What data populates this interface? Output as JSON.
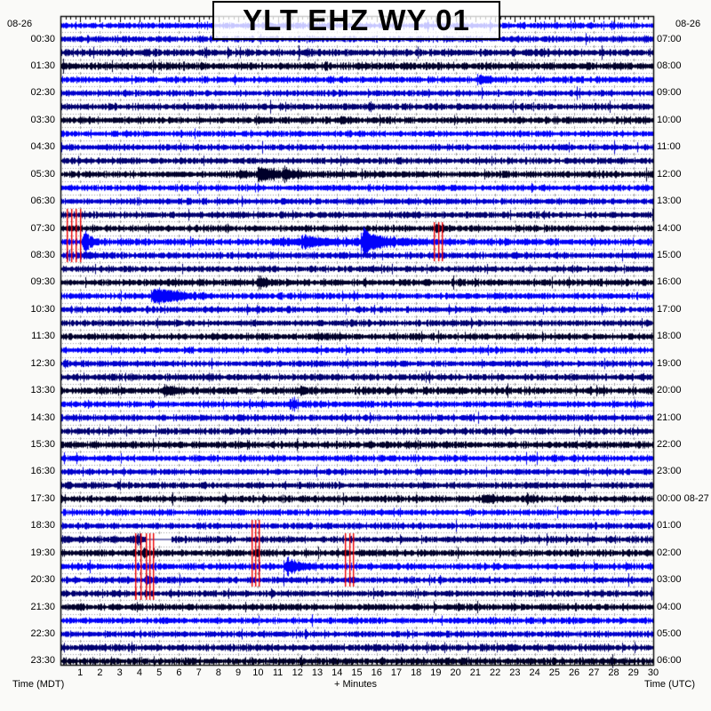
{
  "title": "YLT EHZ WY 01",
  "axes": {
    "left": {
      "caption": "Time (MDT)",
      "date": "08-26",
      "labels": [
        "00:30",
        "01:30",
        "02:30",
        "03:30",
        "04:30",
        "05:30",
        "06:30",
        "07:30",
        "08:30",
        "09:30",
        "10:30",
        "11:30",
        "12:30",
        "13:30",
        "14:30",
        "15:30",
        "16:30",
        "17:30",
        "18:30",
        "19:30",
        "20:30",
        "21:30",
        "22:30",
        "23:30"
      ]
    },
    "right": {
      "caption": "Time (UTC)",
      "date": "08-26",
      "labels": [
        "07:00",
        "08:00",
        "09:00",
        "10:00",
        "11:00",
        "12:00",
        "13:00",
        "14:00",
        "15:00",
        "16:00",
        "17:00",
        "18:00",
        "19:00",
        "20:00",
        "21:00",
        "22:00",
        "23:00",
        "00:00 08-27",
        "01:00",
        "02:00",
        "03:00",
        "04:00",
        "05:00",
        "06:00"
      ]
    },
    "bottom": {
      "caption": "+ Minutes",
      "labels": [
        "1",
        "2",
        "3",
        "4",
        "5",
        "6",
        "7",
        "8",
        "9",
        "10",
        "11",
        "12",
        "13",
        "14",
        "15",
        "16",
        "17",
        "18",
        "19",
        "20",
        "21",
        "22",
        "23",
        "24",
        "25",
        "26",
        "27",
        "28",
        "29",
        "30"
      ]
    }
  },
  "chart_data": {
    "type": "line",
    "subtype": "helicorder-seismogram",
    "title": "YLT EHZ WY 01",
    "station": "YLT",
    "channel": "EHZ",
    "network_region": "WY",
    "display": "01",
    "x_range_minutes": [
      0,
      30
    ],
    "minutes_per_line": 30,
    "local_date": "08-26",
    "utc_rollover_label": "00:00 08-27",
    "palette": {
      "b1": "#0202fa",
      "b2": "#0000cd",
      "d1": "#000070",
      "d2": "#00002a",
      "marker": "#ee0000",
      "grid": "#9a9a9a",
      "frame": "#000000",
      "plot_bg": "#ffffff"
    },
    "lines": [
      {
        "t": "00:00",
        "c": "b1",
        "n": 2.5
      },
      {
        "t": "00:30",
        "c": "b2",
        "n": 2.6
      },
      {
        "t": "01:00",
        "c": "d1",
        "n": 2.9
      },
      {
        "t": "01:30",
        "c": "d2",
        "n": 3.1
      },
      {
        "t": "02:00",
        "c": "b1",
        "n": 2.6,
        "ev": [
          [
            21.2,
            5,
            0.5
          ]
        ]
      },
      {
        "t": "02:30",
        "c": "b2",
        "n": 2.5
      },
      {
        "t": "03:00",
        "c": "d1",
        "n": 2.7
      },
      {
        "t": "03:30",
        "c": "d2",
        "n": 2.8,
        "ev": [
          [
            14.2,
            3,
            0.3
          ]
        ]
      },
      {
        "t": "04:00",
        "c": "b1",
        "n": 2.5
      },
      {
        "t": "04:30",
        "c": "b2",
        "n": 2.5
      },
      {
        "t": "05:00",
        "c": "d1",
        "n": 2.6
      },
      {
        "t": "05:30",
        "c": "d2",
        "n": 2.8,
        "ev": [
          [
            9.0,
            3,
            0.4
          ],
          [
            10.0,
            8,
            0.7
          ],
          [
            11.3,
            5,
            0.6
          ]
        ]
      },
      {
        "t": "06:00",
        "c": "b1",
        "n": 2.5
      },
      {
        "t": "06:30",
        "c": "b2",
        "n": 2.5
      },
      {
        "t": "07:00",
        "c": "d1",
        "n": 2.6
      },
      {
        "t": "07:30",
        "c": "d2",
        "n": 2.7,
        "ev": [
          [
            19.0,
            2.5,
            0.3
          ]
        ]
      },
      {
        "t": "08:00",
        "c": "b1",
        "n": 2.8,
        "ev": [
          [
            1.2,
            12,
            0.3
          ],
          [
            11.0,
            2,
            3.0
          ],
          [
            12.3,
            6,
            0.8
          ],
          [
            15.3,
            18,
            0.2
          ],
          [
            15.45,
            6,
            1.4
          ]
        ]
      },
      {
        "t": "08:30",
        "c": "b2",
        "n": 2.7,
        "ev": [
          [
            1.2,
            3,
            0.3
          ]
        ]
      },
      {
        "t": "09:00",
        "c": "d1",
        "n": 2.6
      },
      {
        "t": "09:30",
        "c": "d2",
        "n": 2.8,
        "ev": [
          [
            10.1,
            5,
            0.25
          ]
        ]
      },
      {
        "t": "10:00",
        "c": "b1",
        "n": 2.6,
        "ev": [
          [
            4.7,
            9,
            0.7
          ],
          [
            5.2,
            3,
            1.2
          ]
        ]
      },
      {
        "t": "10:30",
        "c": "b2",
        "n": 2.5
      },
      {
        "t": "11:00",
        "c": "d1",
        "n": 2.6
      },
      {
        "t": "11:30",
        "c": "d2",
        "n": 2.7,
        "ev": [
          [
            13.0,
            3,
            0.4
          ]
        ]
      },
      {
        "t": "12:00",
        "c": "b1",
        "n": 2.5
      },
      {
        "t": "12:30",
        "c": "b2",
        "n": 2.5
      },
      {
        "t": "13:00",
        "c": "d1",
        "n": 2.7
      },
      {
        "t": "13:30",
        "c": "d2",
        "n": 3.0,
        "ev": [
          [
            5.3,
            4,
            0.6
          ],
          [
            12.1,
            3,
            0.5
          ]
        ]
      },
      {
        "t": "14:00",
        "c": "b1",
        "n": 2.6,
        "ev": [
          [
            11.6,
            4,
            0.5
          ]
        ]
      },
      {
        "t": "14:30",
        "c": "b2",
        "n": 2.6
      },
      {
        "t": "15:00",
        "c": "d1",
        "n": 2.7
      },
      {
        "t": "15:30",
        "c": "d2",
        "n": 2.9
      },
      {
        "t": "16:00",
        "c": "b1",
        "n": 2.6
      },
      {
        "t": "16:30",
        "c": "b2",
        "n": 2.5
      },
      {
        "t": "17:00",
        "c": "d1",
        "n": 2.6
      },
      {
        "t": "17:30",
        "c": "d2",
        "n": 2.7,
        "ev": [
          [
            21.4,
            4,
            0.5
          ],
          [
            23.6,
            3,
            0.4
          ]
        ]
      },
      {
        "t": "18:00",
        "c": "b1",
        "n": 2.5
      },
      {
        "t": "18:30",
        "c": "b2",
        "n": 2.6
      },
      {
        "t": "19:00",
        "c": "d1",
        "n": 2.7,
        "ev": [
          [
            3.9,
            4,
            0.3
          ]
        ],
        "gap": [
          4.35,
          5.6
        ]
      },
      {
        "t": "19:30",
        "c": "d2",
        "n": 2.8,
        "ev": [
          [
            4.2,
            3,
            0.4
          ]
        ]
      },
      {
        "t": "20:00",
        "c": "b1",
        "n": 2.7,
        "ev": [
          [
            11.4,
            8,
            0.6
          ]
        ]
      },
      {
        "t": "20:30",
        "c": "b2",
        "n": 2.6,
        "ev": [
          [
            4.3,
            3,
            0.5
          ]
        ]
      },
      {
        "t": "21:00",
        "c": "d1",
        "n": 2.7
      },
      {
        "t": "21:30",
        "c": "d2",
        "n": 2.8
      },
      {
        "t": "22:00",
        "c": "b1",
        "n": 2.6
      },
      {
        "t": "22:30",
        "c": "b2",
        "n": 2.6
      },
      {
        "t": "23:00",
        "c": "d1",
        "n": 2.8
      },
      {
        "t": "23:30",
        "c": "d2",
        "n": 2.9
      }
    ],
    "red_markers": [
      {
        "minutes": [
          0.32,
          0.55,
          0.78,
          1.0
        ],
        "from_line": 14,
        "to_line": 17
      },
      {
        "minutes": [
          18.9,
          19.1,
          19.3
        ],
        "from_line": 15,
        "to_line": 17
      },
      {
        "minutes": [
          3.8,
          4.05,
          4.3,
          4.5,
          4.7
        ],
        "from_line": 38,
        "to_line": 42
      },
      {
        "minutes": [
          9.65,
          9.85,
          10.05
        ],
        "from_line": 37,
        "to_line": 41
      },
      {
        "minutes": [
          14.4,
          14.6,
          14.8
        ],
        "from_line": 38,
        "to_line": 41
      },
      {
        "minutes": [
          3.8
        ],
        "from_line": 42,
        "to_line": 42
      }
    ]
  }
}
